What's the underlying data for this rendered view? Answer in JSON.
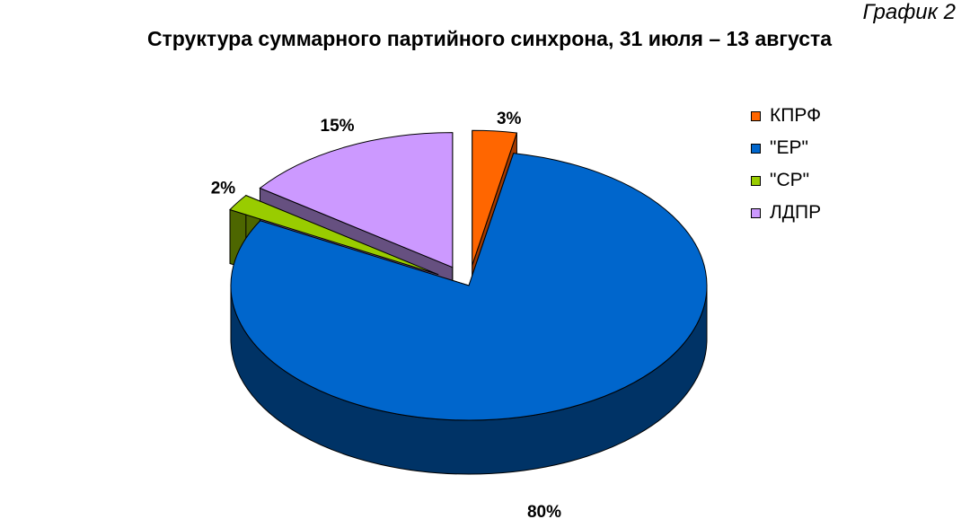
{
  "header": {
    "label": "График 2",
    "title": "Структура суммарного партийного синхрона, 31 июля – 13 августа"
  },
  "chart_data": {
    "type": "pie",
    "title": "Структура суммарного партийного синхрона, 31 июля – 13 августа",
    "categories": [
      "КПРФ",
      "\"ЕР\"",
      "\"СР\"",
      "ЛДПР"
    ],
    "values": [
      3,
      80,
      2,
      15
    ],
    "labels": [
      "3%",
      "80%",
      "2%",
      "15%"
    ],
    "colors": [
      "#FF6600",
      "#0066CC",
      "#99CC00",
      "#CC99FF"
    ],
    "side_colors": [
      "#A33A00",
      "#003366",
      "#4D6600",
      "#665080"
    ],
    "legend_position": "right",
    "three_d": true,
    "exploded": true
  }
}
